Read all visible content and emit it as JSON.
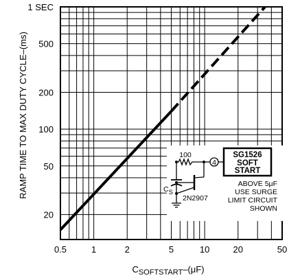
{
  "chart_data": {
    "type": "line",
    "title": "",
    "xlabel_prefix": "C",
    "xlabel_sub": "SOFTSTART",
    "xlabel_suffix": "–(μF)",
    "ylabel": "RAMP TIME TO MAX DUTY CYCLE–(ms)",
    "x_scale": "log",
    "y_scale": "log",
    "xlim": [
      0.5,
      50
    ],
    "ylim": [
      12.5,
      1000
    ],
    "x_ticks": [
      0.5,
      1,
      2,
      5,
      10,
      20,
      50
    ],
    "x_tick_labels": [
      "0.5",
      "1",
      "2",
      "5",
      "10",
      "20",
      "50"
    ],
    "y_ticks": [
      20,
      50,
      100,
      200,
      500,
      1000
    ],
    "y_tick_labels": [
      "20",
      "50",
      "100",
      "200",
      "500",
      "1 SEC"
    ],
    "grid": true,
    "series": [
      {
        "style": "solid",
        "x": [
          0.5,
          5
        ],
        "y": [
          15,
          140
        ]
      },
      {
        "style": "dashed",
        "x": [
          5,
          35
        ],
        "y": [
          140,
          1000
        ]
      }
    ]
  },
  "inset": {
    "box_lines": [
      "SG1526",
      "SOFT",
      "START"
    ],
    "pin": "4",
    "resistor": "100",
    "cap_label": "C",
    "cap_sub": "S",
    "transistor": "2N2907",
    "note_lines": [
      "ABOVE 5μF",
      "USE SURGE",
      "LIMIT CIRCUIT",
      "SHOWN"
    ]
  }
}
